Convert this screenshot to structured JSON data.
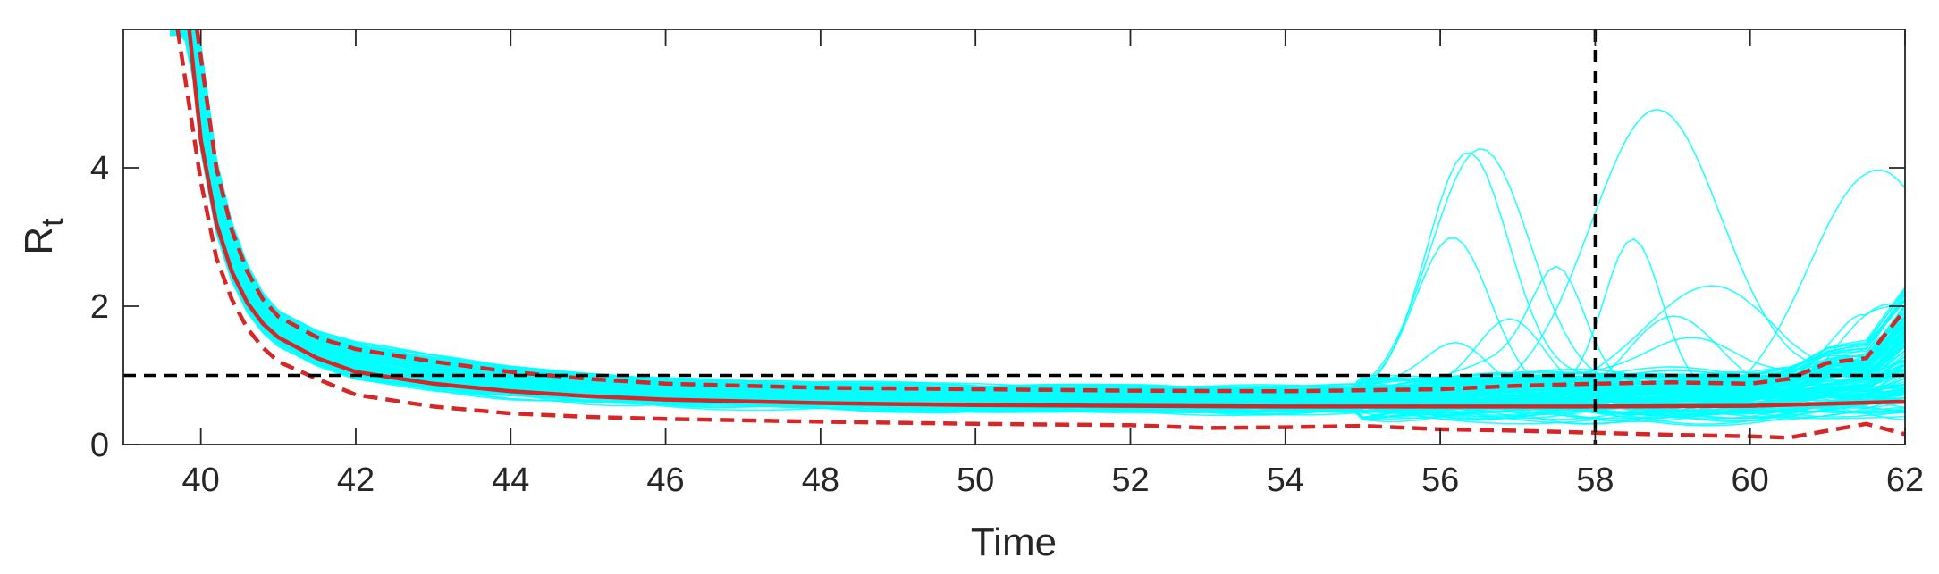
{
  "chart_data": {
    "type": "line",
    "title": "",
    "xlabel": "Time",
    "ylabel": "R",
    "ylabel_subscript": "t",
    "xlim": [
      39,
      62
    ],
    "ylim": [
      0,
      6
    ],
    "xticks": [
      40,
      42,
      44,
      46,
      48,
      50,
      52,
      54,
      56,
      58,
      60,
      62
    ],
    "yticks": [
      0,
      2,
      4
    ],
    "reference_lines": {
      "horizontal_y": 1,
      "vertical_x": 58
    },
    "colors": {
      "samples": "#00ffff",
      "median": "#d62728",
      "interval": "#d62728",
      "reference": "#000000"
    },
    "series": [
      {
        "style": "solid",
        "x": [
          39.85,
          40.0,
          40.2,
          40.4,
          40.6,
          40.8,
          41.0,
          41.5,
          42.0,
          43.0,
          44.0,
          45.0,
          46.0,
          48.0,
          50.0,
          52.0,
          54.0,
          56.0,
          58.0,
          60.0,
          62.0
        ],
        "y": [
          6.0,
          4.4,
          3.2,
          2.5,
          2.05,
          1.75,
          1.55,
          1.25,
          1.05,
          0.88,
          0.77,
          0.7,
          0.65,
          0.6,
          0.57,
          0.56,
          0.55,
          0.55,
          0.55,
          0.56,
          0.62
        ]
      },
      {
        "style": "dashed",
        "x": [
          39.95,
          40.2,
          40.4,
          40.6,
          40.8,
          41.0,
          41.5,
          42.0,
          43.0,
          44.0,
          45.0,
          46.0,
          48.0,
          50.0,
          52.0,
          54.0,
          56.0,
          57.0,
          58.0,
          59.0,
          60.0,
          60.5,
          61.0,
          61.5,
          62.0
        ],
        "y": [
          6.0,
          4.0,
          3.1,
          2.5,
          2.1,
          1.85,
          1.55,
          1.38,
          1.2,
          1.05,
          0.95,
          0.88,
          0.82,
          0.8,
          0.78,
          0.77,
          0.8,
          0.85,
          0.88,
          0.9,
          0.88,
          0.95,
          1.18,
          1.25,
          1.95
        ]
      },
      {
        "style": "dashed",
        "x": [
          39.7,
          40.0,
          40.2,
          40.4,
          40.6,
          40.8,
          41.0,
          41.5,
          42.0,
          43.0,
          44.0,
          45.0,
          46.0,
          48.0,
          50.0,
          52.0,
          53.0,
          54.0,
          55.0,
          56.0,
          57.0,
          58.0,
          59.0,
          60.0,
          60.5,
          61.0,
          61.5,
          62.0
        ],
        "y": [
          6.0,
          3.8,
          2.7,
          2.1,
          1.68,
          1.4,
          1.2,
          0.95,
          0.72,
          0.55,
          0.45,
          0.4,
          0.37,
          0.33,
          0.3,
          0.28,
          0.24,
          0.25,
          0.27,
          0.22,
          0.2,
          0.17,
          0.14,
          0.12,
          0.1,
          0.2,
          0.3,
          0.15
        ]
      }
    ]
  }
}
